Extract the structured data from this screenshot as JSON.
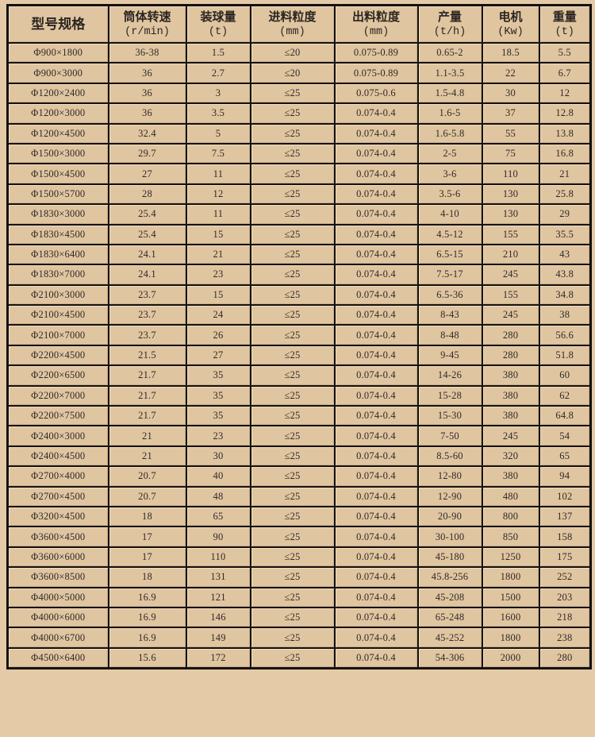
{
  "table": {
    "headers": [
      {
        "label": "型号规格",
        "unit": ""
      },
      {
        "label": "筒体转速",
        "unit": "(r/min)"
      },
      {
        "label": "装球量",
        "unit": "(t)"
      },
      {
        "label": "进料粒度",
        "unit": "(mm)"
      },
      {
        "label": "出料粒度",
        "unit": "(mm)"
      },
      {
        "label": "产量",
        "unit": "(t/h)"
      },
      {
        "label": "电机",
        "unit": "(Kw)"
      },
      {
        "label": "重量",
        "unit": "(t)"
      }
    ],
    "rows": [
      [
        "Φ900×1800",
        "36-38",
        "1.5",
        "≤20",
        "0.075-0.89",
        "0.65-2",
        "18.5",
        "5.5"
      ],
      [
        "Φ900×3000",
        "36",
        "2.7",
        "≤20",
        "0.075-0.89",
        "1.1-3.5",
        "22",
        "6.7"
      ],
      [
        "Φ1200×2400",
        "36",
        "3",
        "≤25",
        "0.075-0.6",
        "1.5-4.8",
        "30",
        "12"
      ],
      [
        "Φ1200×3000",
        "36",
        "3.5",
        "≤25",
        "0.074-0.4",
        "1.6-5",
        "37",
        "12.8"
      ],
      [
        "Φ1200×4500",
        "32.4",
        "5",
        "≤25",
        "0.074-0.4",
        "1.6-5.8",
        "55",
        "13.8"
      ],
      [
        "Φ1500×3000",
        "29.7",
        "7.5",
        "≤25",
        "0.074-0.4",
        "2-5",
        "75",
        "16.8"
      ],
      [
        "Φ1500×4500",
        "27",
        "11",
        "≤25",
        "0.074-0.4",
        "3-6",
        "110",
        "21"
      ],
      [
        "Φ1500×5700",
        "28",
        "12",
        "≤25",
        "0.074-0.4",
        "3.5-6",
        "130",
        "25.8"
      ],
      [
        "Φ1830×3000",
        "25.4",
        "11",
        "≤25",
        "0.074-0.4",
        "4-10",
        "130",
        "29"
      ],
      [
        "Φ1830×4500",
        "25.4",
        "15",
        "≤25",
        "0.074-0.4",
        "4.5-12",
        "155",
        "35.5"
      ],
      [
        "Φ1830×6400",
        "24.1",
        "21",
        "≤25",
        "0.074-0.4",
        "6.5-15",
        "210",
        "43"
      ],
      [
        "Φ1830×7000",
        "24.1",
        "23",
        "≤25",
        "0.074-0.4",
        "7.5-17",
        "245",
        "43.8"
      ],
      [
        "Φ2100×3000",
        "23.7",
        "15",
        "≤25",
        "0.074-0.4",
        "6.5-36",
        "155",
        "34.8"
      ],
      [
        "Φ2100×4500",
        "23.7",
        "24",
        "≤25",
        "0.074-0.4",
        "8-43",
        "245",
        "38"
      ],
      [
        "Φ2100×7000",
        "23.7",
        "26",
        "≤25",
        "0.074-0.4",
        "8-48",
        "280",
        "56.6"
      ],
      [
        "Φ2200×4500",
        "21.5",
        "27",
        "≤25",
        "0.074-0.4",
        "9-45",
        "280",
        "51.8"
      ],
      [
        "Φ2200×6500",
        "21.7",
        "35",
        "≤25",
        "0.074-0.4",
        "14-26",
        "380",
        "60"
      ],
      [
        "Φ2200×7000",
        "21.7",
        "35",
        "≤25",
        "0.074-0.4",
        "15-28",
        "380",
        "62"
      ],
      [
        "Φ2200×7500",
        "21.7",
        "35",
        "≤25",
        "0.074-0.4",
        "15-30",
        "380",
        "64.8"
      ],
      [
        "Φ2400×3000",
        "21",
        "23",
        "≤25",
        "0.074-0.4",
        "7-50",
        "245",
        "54"
      ],
      [
        "Φ2400×4500",
        "21",
        "30",
        "≤25",
        "0.074-0.4",
        "8.5-60",
        "320",
        "65"
      ],
      [
        "Φ2700×4000",
        "20.7",
        "40",
        "≤25",
        "0.074-0.4",
        "12-80",
        "380",
        "94"
      ],
      [
        "Φ2700×4500",
        "20.7",
        "48",
        "≤25",
        "0.074-0.4",
        "12-90",
        "480",
        "102"
      ],
      [
        "Φ3200×4500",
        "18",
        "65",
        "≤25",
        "0.074-0.4",
        "20-90",
        "800",
        "137"
      ],
      [
        "Φ3600×4500",
        "17",
        "90",
        "≤25",
        "0.074-0.4",
        "30-100",
        "850",
        "158"
      ],
      [
        "Φ3600×6000",
        "17",
        "110",
        "≤25",
        "0.074-0.4",
        "45-180",
        "1250",
        "175"
      ],
      [
        "Φ3600×8500",
        "18",
        "131",
        "≤25",
        "0.074-0.4",
        "45.8-256",
        "1800",
        "252"
      ],
      [
        "Φ4000×5000",
        "16.9",
        "121",
        "≤25",
        "0.074-0.4",
        "45-208",
        "1500",
        "203"
      ],
      [
        "Φ4000×6000",
        "16.9",
        "146",
        "≤25",
        "0.074-0.4",
        "65-248",
        "1600",
        "218"
      ],
      [
        "Φ4000×6700",
        "16.9",
        "149",
        "≤25",
        "0.074-0.4",
        "45-252",
        "1800",
        "238"
      ],
      [
        "Φ4500×6400",
        "15.6",
        "172",
        "≤25",
        "0.074-0.4",
        "54-306",
        "2000",
        "280"
      ]
    ]
  }
}
